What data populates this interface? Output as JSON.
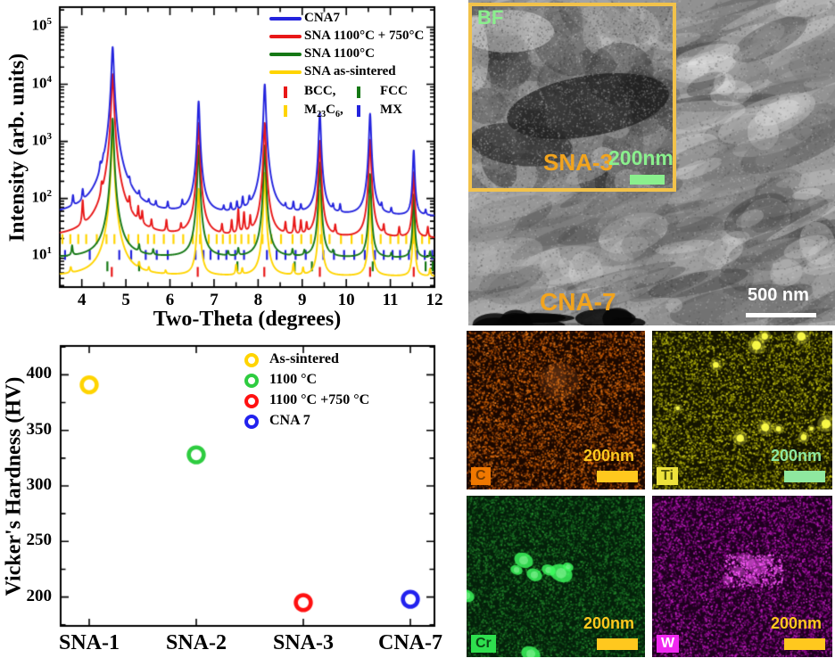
{
  "chart_data": [
    {
      "type": "line",
      "title": "",
      "xlabel": "Two-Theta (degrees)",
      "ylabel": "Intensity (arb. units)",
      "x_range": [
        3.5,
        12
      ],
      "x_major_ticks": [
        4,
        5,
        6,
        7,
        8,
        9,
        10,
        11,
        12
      ],
      "y_scale": "log",
      "y_log_range": [
        0.45,
        5.35
      ],
      "y_tick_exponents": [
        1,
        2,
        3,
        4,
        5
      ],
      "grid": false,
      "legend_position": "top-right",
      "series": [
        {
          "name": "CNA7",
          "color": "#2323dd",
          "baseline": 48,
          "peaks": [
            [
              3.8,
              40,
              0.015
            ],
            [
              4.02,
              52,
              0.015
            ],
            [
              4.42,
              118,
              0.016
            ],
            [
              4.49,
              70,
              0.014
            ],
            [
              4.7,
              45000,
              0.022
            ],
            [
              5.08,
              45,
              0.015
            ],
            [
              5.3,
              28,
              0.014
            ],
            [
              5.52,
              16,
              0.014
            ],
            [
              5.68,
              18,
              0.014
            ],
            [
              5.95,
              22,
              0.014
            ],
            [
              6.28,
              24,
              0.014
            ],
            [
              6.65,
              5000,
              0.02
            ],
            [
              7.22,
              14,
              0.014
            ],
            [
              7.38,
              22,
              0.014
            ],
            [
              7.52,
              26,
              0.014
            ],
            [
              7.65,
              40,
              0.015
            ],
            [
              7.8,
              28,
              0.014
            ],
            [
              8.15,
              10000,
              0.02
            ],
            [
              8.62,
              14,
              0.014
            ],
            [
              8.8,
              26,
              0.015
            ],
            [
              8.97,
              18,
              0.014
            ],
            [
              9.4,
              3100,
              0.02
            ],
            [
              9.7,
              16,
              0.014
            ],
            [
              9.86,
              22,
              0.014
            ],
            [
              10.54,
              3000,
              0.02
            ],
            [
              10.8,
              18,
              0.014
            ],
            [
              11.02,
              14,
              0.014
            ],
            [
              11.53,
              650,
              0.018
            ],
            [
              11.8,
              12,
              0.014
            ]
          ]
        },
        {
          "name": "SNA 1100°C + 750°C",
          "color": "#e81717",
          "baseline": 20,
          "peaks": [
            [
              4.02,
              58,
              0.015
            ],
            [
              4.45,
              65,
              0.016
            ],
            [
              4.7,
              15000,
              0.022
            ],
            [
              5.08,
              40,
              0.015
            ],
            [
              5.28,
              32,
              0.014
            ],
            [
              5.37,
              24,
              0.014
            ],
            [
              5.58,
              13,
              0.014
            ],
            [
              5.92,
              16,
              0.014
            ],
            [
              6.25,
              9,
              0.014
            ],
            [
              6.65,
              2100,
              0.02
            ],
            [
              7.18,
              11,
              0.014
            ],
            [
              7.4,
              18,
              0.014
            ],
            [
              7.55,
              42,
              0.015
            ],
            [
              7.68,
              32,
              0.015
            ],
            [
              7.82,
              22,
              0.014
            ],
            [
              8.15,
              2100,
              0.02
            ],
            [
              8.62,
              14,
              0.014
            ],
            [
              8.82,
              24,
              0.015
            ],
            [
              8.97,
              18,
              0.014
            ],
            [
              9.1,
              13,
              0.014
            ],
            [
              9.4,
              1000,
              0.02
            ],
            [
              9.75,
              11,
              0.014
            ],
            [
              10.54,
              1050,
              0.02
            ],
            [
              10.85,
              11,
              0.014
            ],
            [
              11.2,
              10,
              0.014
            ],
            [
              11.53,
              270,
              0.018
            ],
            [
              11.85,
              11,
              0.014
            ]
          ]
        },
        {
          "name": "SNA 1100°C",
          "color": "#157815",
          "baseline": 9,
          "peaks": [
            [
              3.78,
              5,
              0.015
            ],
            [
              4.7,
              2500,
              0.02
            ],
            [
              5.3,
              4,
              0.015
            ],
            [
              5.62,
              2.6,
              0.015
            ],
            [
              6.65,
              850,
              0.018
            ],
            [
              7.32,
              2.0,
              0.015
            ],
            [
              7.55,
              3.5,
              0.015
            ],
            [
              8.15,
              850,
              0.018
            ],
            [
              8.78,
              3.0,
              0.015
            ],
            [
              9.05,
              2.2,
              0.015
            ],
            [
              9.4,
              420,
              0.018
            ],
            [
              9.7,
              2.0,
              0.015
            ],
            [
              10.54,
              260,
              0.018
            ],
            [
              11.02,
              1.7,
              0.015
            ],
            [
              11.53,
              110,
              0.016
            ],
            [
              11.9,
              2.6,
              0.015
            ]
          ]
        },
        {
          "name": "SNA as-sintered",
          "color": "#ffd400",
          "baseline": 4.3,
          "peaks": [
            [
              3.75,
              1.3,
              0.018
            ],
            [
              4.7,
              1400,
              0.022
            ],
            [
              5.3,
              1.6,
              0.016
            ],
            [
              5.52,
              1.0,
              0.016
            ],
            [
              5.9,
              0.7,
              0.015
            ],
            [
              6.65,
              145,
              0.018
            ],
            [
              7.5,
              2.3,
              0.016
            ],
            [
              7.64,
              1.3,
              0.015
            ],
            [
              8.15,
              280,
              0.018
            ],
            [
              8.8,
              2.5,
              0.016
            ],
            [
              9.02,
              1.5,
              0.015
            ],
            [
              9.4,
              135,
              0.018
            ],
            [
              10.54,
              105,
              0.018
            ],
            [
              11.53,
              50,
              0.016
            ],
            [
              11.9,
              1.5,
              0.015
            ]
          ]
        }
      ],
      "phase_markers": [
        {
          "name": "BCC,",
          "color": "#e81717",
          "level": 5.2,
          "positions": [
            4.68,
            6.63,
            8.14,
            9.4,
            10.54,
            11.53
          ]
        },
        {
          "name": "FCC",
          "color": "#157815",
          "level": 6.5,
          "positions": [
            4.58,
            5.3,
            7.53,
            8.83,
            9.22,
            10.6,
            11.8,
            11.96
          ]
        },
        {
          "name": "M_{23}C_{6},",
          "color": "#ffd400",
          "level": 19.5,
          "positions": [
            3.56,
            3.74,
            3.92,
            4.1,
            4.34,
            4.56,
            4.74,
            5.06,
            5.28,
            5.5,
            5.64,
            5.86,
            6.08,
            6.3,
            6.52,
            6.68,
            6.88,
            7.06,
            7.2,
            7.36,
            7.48,
            7.62,
            7.78,
            7.92,
            8.1,
            8.3,
            8.52,
            8.78,
            8.98,
            9.2,
            9.42,
            9.62,
            9.88,
            10.12,
            10.36,
            10.58,
            10.78,
            11.0,
            11.18,
            11.36,
            11.52,
            11.72,
            11.88
          ]
        },
        {
          "name": "MX",
          "color": "#2323dd",
          "level": 10.3,
          "positions": [
            3.62,
            4.18,
            4.85,
            5.12,
            5.45,
            5.7,
            5.95,
            6.58,
            6.76,
            6.92,
            7.1,
            7.28,
            7.48,
            7.68,
            8.2,
            8.42,
            8.62,
            8.85,
            9.08,
            9.48,
            9.72,
            9.95,
            10.18,
            10.42,
            10.65,
            10.85,
            11.05,
            11.22,
            11.42,
            11.6,
            11.78,
            11.95
          ]
        }
      ]
    },
    {
      "type": "scatter",
      "title": "",
      "categories": [
        "SNA-1",
        "SNA-2",
        "SNA-3",
        "CNA-7"
      ],
      "values": [
        391,
        328,
        195,
        198
      ],
      "point_colors": [
        "#ffd400",
        "#2ecc40",
        "#ff1111",
        "#2222ee"
      ],
      "point_conditions": [
        "As-sintered",
        "1100 °C",
        "1100 °C +750 °C",
        "CNA 7"
      ],
      "xlabel": "",
      "ylabel": "Vicker's Hardness (HV)",
      "y_range": [
        174,
        426
      ],
      "y_major_ticks": [
        200,
        250,
        300,
        350,
        400
      ],
      "grid": false,
      "legend_position": "top-right",
      "legend": [
        {
          "label": "As-sintered",
          "color": "#ffd400"
        },
        {
          "label": "1100 °C",
          "color": "#2ecc40"
        },
        {
          "label": "1100 °C +750 °C",
          "color": "#ff1111"
        },
        {
          "label": "CNA 7",
          "color": "#2222ee"
        }
      ]
    }
  ],
  "tem": {
    "main_label": "CNA-7",
    "main_scale_text": "500 nm",
    "main_scale_color": "#ffffff",
    "label_color": "#f2a41e",
    "inset": {
      "corner_label": "BF",
      "sample_label": "SNA-3",
      "scale_text": "200nm",
      "accent_color": "#8aef8d",
      "border_color": "#f2c24a"
    }
  },
  "eds": {
    "maps": [
      {
        "element": "C",
        "scale_text": "200nm",
        "chip_bg": "#f07800",
        "chip_fg": "#7a3c00",
        "bar_color": "#ffc81e",
        "text_color": "#ffc81e",
        "base": "#190700",
        "speckle": [
          "#b34a00",
          "#e06800",
          "#ff8820"
        ]
      },
      {
        "element": "Ti",
        "scale_text": "200nm",
        "chip_bg": "#ede23c",
        "chip_fg": "#55550a",
        "bar_color": "#8fe89f",
        "text_color": "#8fe89f",
        "base": "#141400",
        "speckle": [
          "#8a8a00",
          "#b8b800",
          "#e0e020"
        ],
        "spot_color": "#ffff4a"
      },
      {
        "element": "Cr",
        "scale_text": "200nm",
        "chip_bg": "#2ee04e",
        "chip_fg": "#0a4a14",
        "bar_color": "#ffc81e",
        "text_color": "#ffc81e",
        "base": "#04200a",
        "speckle": [
          "#145f1e",
          "#1e7a28",
          "#2a9632"
        ],
        "blob_color": "#3dff5f"
      },
      {
        "element": "W",
        "scale_text": "200nm",
        "chip_bg": "#f028f0",
        "chip_fg": "#ffffff",
        "bar_color": "#ffc81e",
        "text_color": "#ffc81e",
        "base": "#1e001e",
        "speckle": [
          "#8c008c",
          "#b414b4",
          "#d828d8"
        ],
        "blob_color": "#ff5cff"
      }
    ]
  }
}
